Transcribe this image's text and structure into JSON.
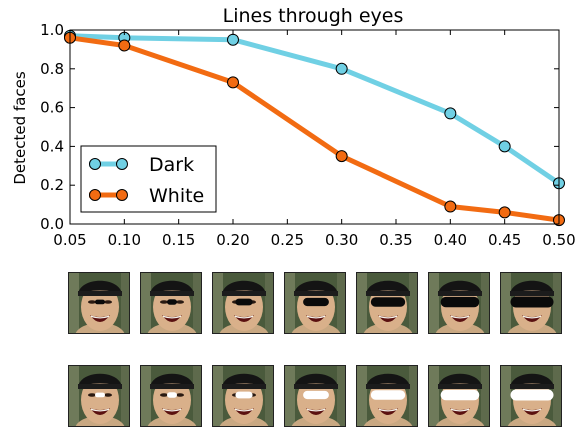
{
  "chart_data": {
    "type": "line",
    "title": "Lines through eyes",
    "xlabel": "",
    "ylabel": "Detected faces",
    "xlim": [
      0.05,
      0.5
    ],
    "ylim": [
      0.0,
      1.0
    ],
    "x_ticks": [
      "0.05",
      "0.10",
      "0.15",
      "0.20",
      "0.25",
      "0.30",
      "0.35",
      "0.40",
      "0.45",
      "0.50"
    ],
    "y_ticks": [
      "0.0",
      "0.2",
      "0.4",
      "0.6",
      "0.8",
      "1.0"
    ],
    "grid": false,
    "legend_position": "lower-left",
    "x": [
      0.05,
      0.1,
      0.2,
      0.3,
      0.4,
      0.45,
      0.5
    ],
    "series": [
      {
        "name": "Dark",
        "color": "#70d0e4",
        "values": [
          0.97,
          0.96,
          0.95,
          0.8,
          0.57,
          0.4,
          0.21
        ]
      },
      {
        "name": "White",
        "color": "#f26b12",
        "values": [
          0.96,
          0.92,
          0.73,
          0.35,
          0.09,
          0.06,
          0.02
        ]
      }
    ]
  },
  "thumbnails": {
    "dark_row": {
      "line_color": "#0a0a0a",
      "line_fractions": [
        0.05,
        0.1,
        0.2,
        0.3,
        0.4,
        0.45,
        0.5
      ]
    },
    "white_row": {
      "line_color": "#ffffff",
      "line_fractions": [
        0.05,
        0.1,
        0.2,
        0.3,
        0.4,
        0.45,
        0.5
      ]
    }
  }
}
